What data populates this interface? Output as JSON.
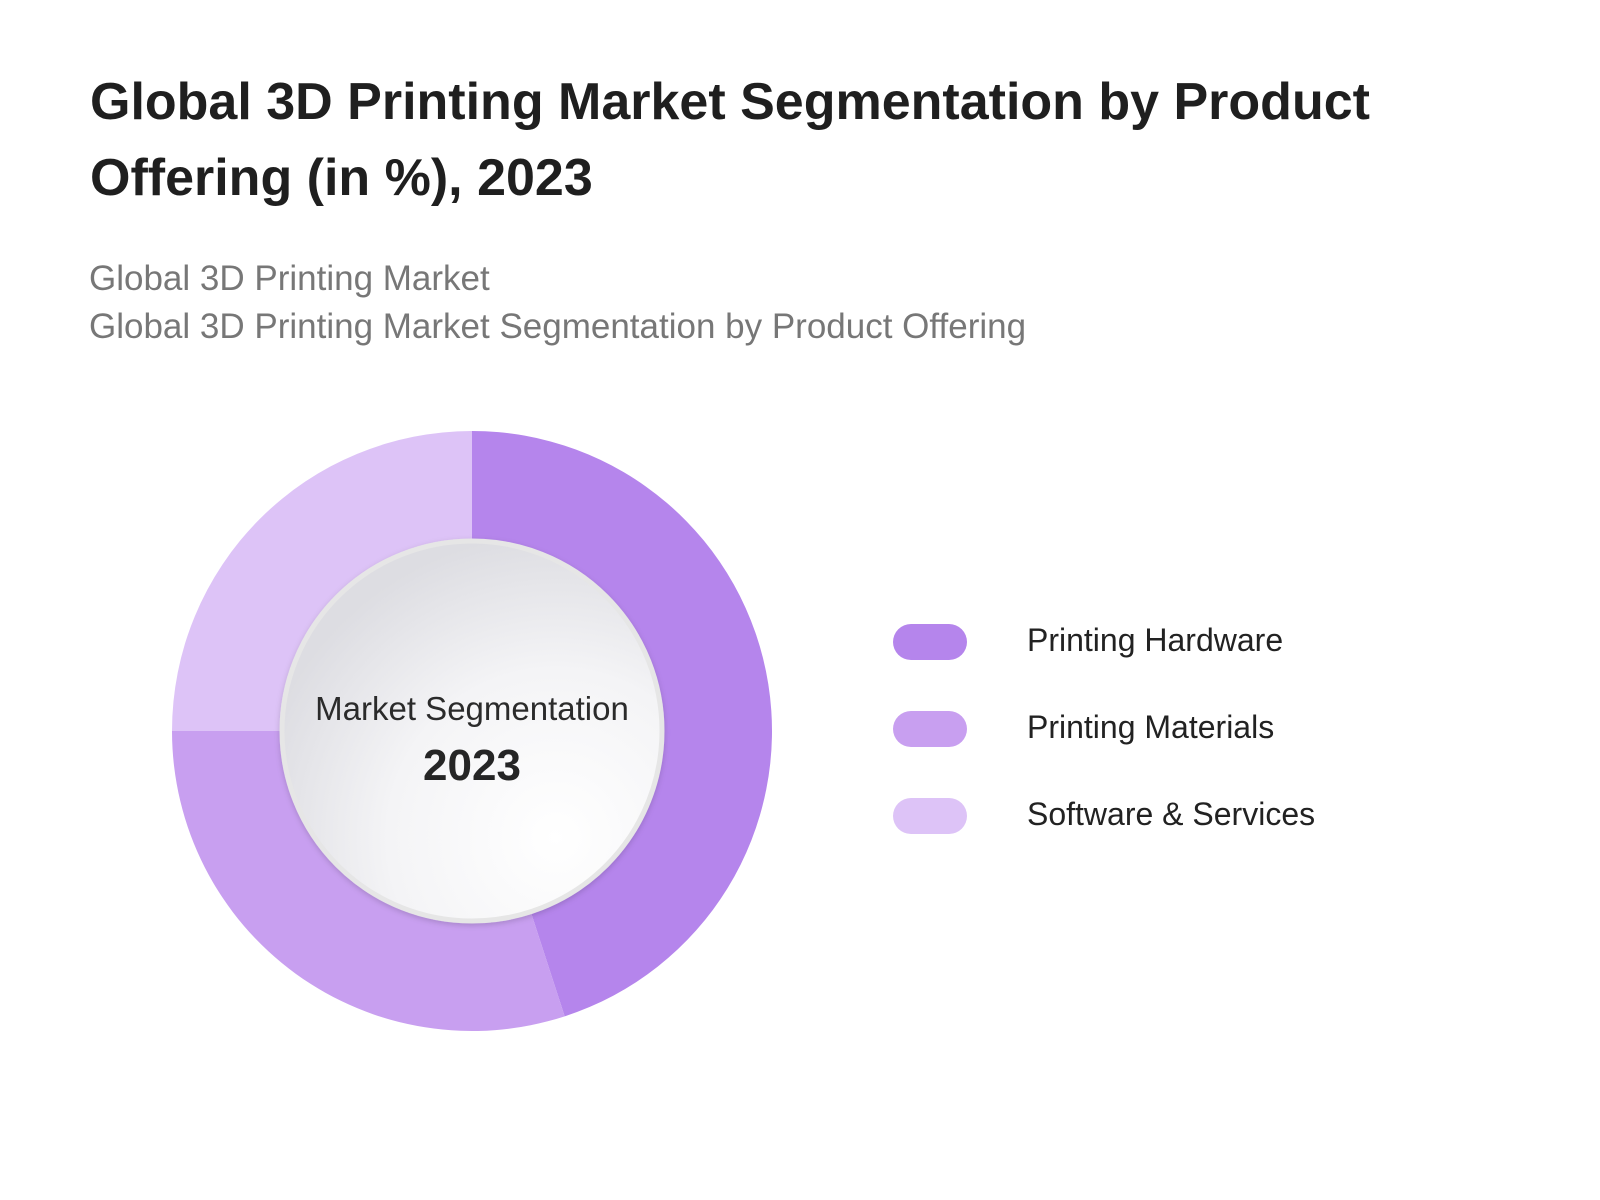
{
  "chart_data": {
    "type": "pie",
    "title": "Global 3D Printing Market Segmentation by Product Offering (in %), 2023",
    "subtitle": [
      "Global 3D Printing Market",
      "Global 3D Printing Market Segmentation by Product Offering"
    ],
    "center_label": "Market Segmentation",
    "center_value": "2023",
    "series": [
      {
        "name": "Printing Hardware",
        "value": 45,
        "color": "#b585ec"
      },
      {
        "name": "Printing Materials",
        "value": 30,
        "color": "#c89ff0"
      },
      {
        "name": "Software & Services",
        "value": 25,
        "color": "#ddc3f7"
      }
    ],
    "legend_position": "right",
    "data_labels": false,
    "grid": false
  }
}
